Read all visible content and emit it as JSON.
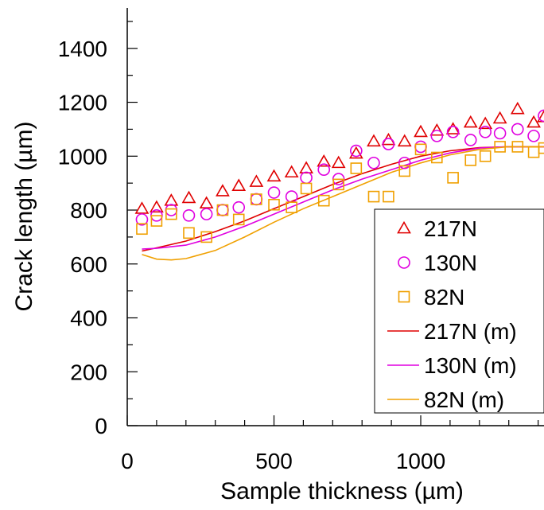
{
  "chart_data": {
    "type": "scatter",
    "xlabel": "Sample thickness (µm)",
    "ylabel": "Crack length (µm)",
    "xlim": [
      0,
      1420
    ],
    "ylim": [
      0,
      1550
    ],
    "xticks": [
      0,
      500,
      1000
    ],
    "yticks": [
      0,
      200,
      400,
      600,
      800,
      1000,
      1200,
      1400
    ],
    "legend": "bottom-right",
    "grid": false,
    "series": [
      {
        "name": "217N",
        "kind": "points",
        "marker": "triangle",
        "color": "#e00000",
        "x": [
          50,
          100,
          150,
          210,
          270,
          325,
          380,
          440,
          500,
          560,
          610,
          670,
          720,
          780,
          840,
          890,
          945,
          1000,
          1055,
          1110,
          1170,
          1220,
          1270,
          1330,
          1385,
          1420
        ],
        "y": [
          805,
          810,
          835,
          845,
          825,
          870,
          890,
          905,
          925,
          940,
          955,
          980,
          975,
          1010,
          1055,
          1060,
          1055,
          1090,
          1095,
          1100,
          1125,
          1120,
          1140,
          1175,
          1125,
          1145
        ]
      },
      {
        "name": "130N",
        "kind": "points",
        "marker": "circle",
        "color": "#e000e0",
        "x": [
          50,
          100,
          150,
          210,
          270,
          325,
          380,
          440,
          500,
          560,
          610,
          670,
          720,
          780,
          840,
          890,
          945,
          1000,
          1055,
          1110,
          1170,
          1220,
          1270,
          1330,
          1385,
          1420
        ],
        "y": [
          765,
          780,
          800,
          780,
          785,
          800,
          810,
          840,
          865,
          850,
          920,
          950,
          915,
          1020,
          975,
          1045,
          975,
          1035,
          1075,
          1090,
          1060,
          1090,
          1085,
          1100,
          1075,
          1150
        ]
      },
      {
        "name": "82N",
        "kind": "points",
        "marker": "square",
        "color": "#f0a000",
        "x": [
          50,
          100,
          150,
          210,
          270,
          325,
          380,
          440,
          500,
          560,
          610,
          670,
          720,
          780,
          840,
          890,
          945,
          1000,
          1055,
          1110,
          1170,
          1220,
          1270,
          1330,
          1385,
          1420
        ],
        "y": [
          730,
          760,
          785,
          715,
          700,
          800,
          765,
          840,
          820,
          810,
          880,
          835,
          895,
          955,
          850,
          850,
          945,
          1025,
          995,
          920,
          985,
          1000,
          1035,
          1035,
          1015,
          1030
        ]
      },
      {
        "name": "217N (m)",
        "kind": "line",
        "color": "#e00000",
        "x": [
          50,
          100,
          200,
          300,
          400,
          500,
          600,
          700,
          800,
          900,
          1000,
          1100,
          1200,
          1300,
          1420
        ],
        "y": [
          648,
          660,
          685,
          720,
          760,
          805,
          850,
          895,
          935,
          970,
          1000,
          1020,
          1032,
          1035,
          1035
        ]
      },
      {
        "name": "130N (m)",
        "kind": "line",
        "color": "#e000e0",
        "x": [
          50,
          100,
          200,
          300,
          400,
          500,
          600,
          700,
          800,
          900,
          1000,
          1100,
          1200,
          1300,
          1420
        ],
        "y": [
          655,
          658,
          670,
          700,
          740,
          785,
          830,
          875,
          915,
          950,
          985,
          1012,
          1030,
          1035,
          1035
        ]
      },
      {
        "name": "82N (m)",
        "kind": "line",
        "color": "#f0a000",
        "x": [
          50,
          100,
          150,
          200,
          300,
          400,
          500,
          600,
          700,
          800,
          900,
          1000,
          1100,
          1200,
          1300,
          1420
        ],
        "y": [
          635,
          618,
          615,
          620,
          650,
          700,
          755,
          805,
          850,
          895,
          940,
          975,
          1005,
          1025,
          1035,
          1035
        ]
      }
    ]
  }
}
